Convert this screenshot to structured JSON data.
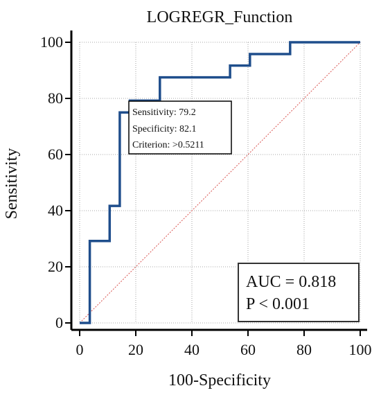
{
  "chart_data": {
    "type": "line",
    "title": "LOGREGR_Function",
    "xlabel": "100-Specificity",
    "ylabel": "Sensitivity",
    "xlim": [
      0,
      100
    ],
    "ylim": [
      0,
      100
    ],
    "x_ticks": [
      "0",
      "20",
      "40",
      "60",
      "80",
      "100"
    ],
    "y_ticks": [
      "0",
      "20",
      "40",
      "60",
      "80",
      "100"
    ],
    "grid": true,
    "series": [
      {
        "type": "step",
        "color": "#1f4e8c",
        "points": [
          [
            0,
            0
          ],
          [
            3.6,
            0
          ],
          [
            3.6,
            29.2
          ],
          [
            10.7,
            29.2
          ],
          [
            10.7,
            41.7
          ],
          [
            14.3,
            41.7
          ],
          [
            14.3,
            75.0
          ],
          [
            17.9,
            75.0
          ],
          [
            17.9,
            79.2
          ],
          [
            28.6,
            79.2
          ],
          [
            28.6,
            87.5
          ],
          [
            53.6,
            87.5
          ],
          [
            53.6,
            91.7
          ],
          [
            60.7,
            91.7
          ],
          [
            60.7,
            95.8
          ],
          [
            75.0,
            95.8
          ],
          [
            75.0,
            100
          ],
          [
            100,
            100
          ]
        ]
      },
      {
        "type": "reference",
        "color": "#d9534f",
        "points": [
          [
            0,
            0
          ],
          [
            100,
            100
          ]
        ]
      }
    ],
    "annotation": {
      "sensitivity": "Sensitivity: 79.2",
      "specificity": "Specificity: 82.1",
      "criterion": "Criterion: >0.5211",
      "point": [
        17.9,
        79.2
      ]
    },
    "stats_box": {
      "auc": "AUC = 0.818",
      "p": "P < 0.001"
    }
  }
}
